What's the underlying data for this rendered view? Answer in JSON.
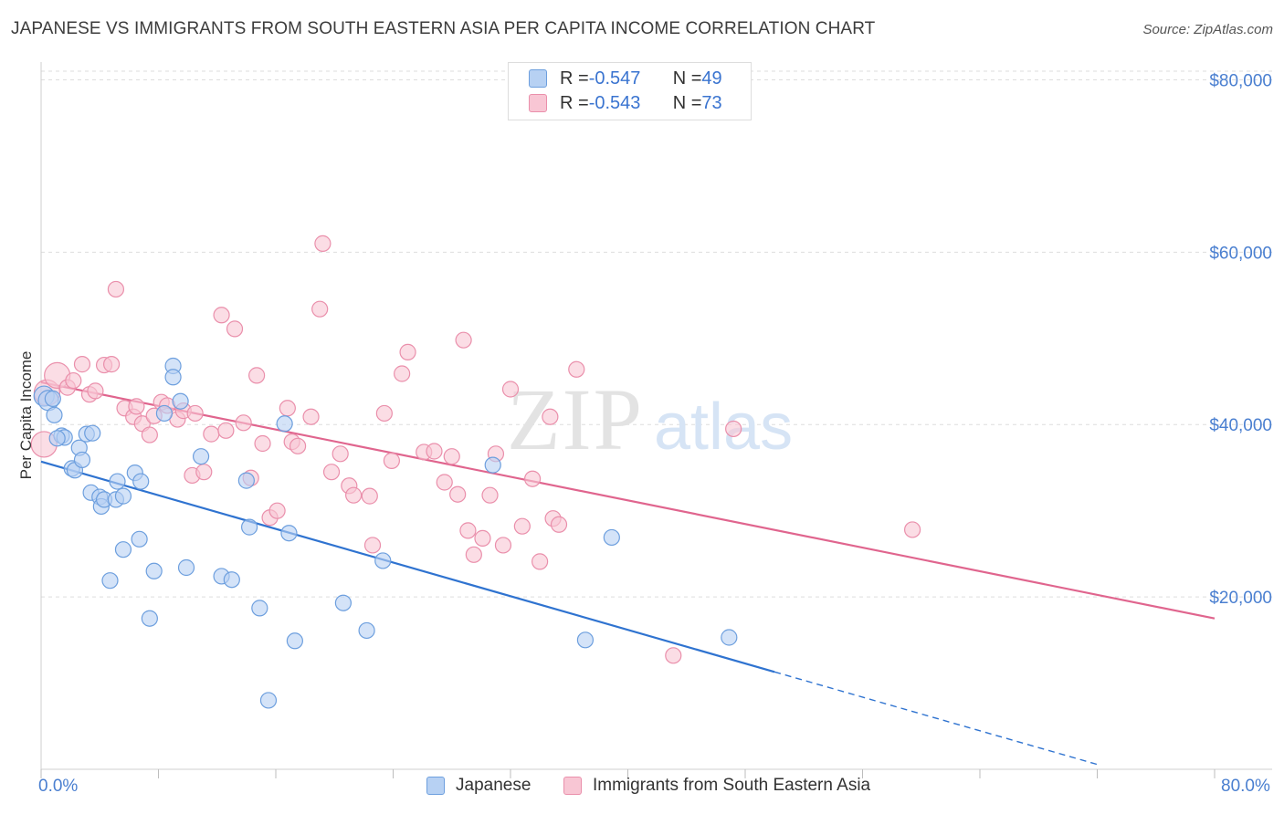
{
  "header": {
    "title": "JAPANESE VS IMMIGRANTS FROM SOUTH EASTERN ASIA PER CAPITA INCOME CORRELATION CHART",
    "source": "Source: ZipAtlas.com"
  },
  "watermark": {
    "zip": "ZIP",
    "atlas": "atlas"
  },
  "legend_top": {
    "rows": [
      {
        "r_label": "R = ",
        "r_value": "-0.547",
        "n_label": "N = ",
        "n_value": "49"
      },
      {
        "r_label": "R = ",
        "r_value": "-0.543",
        "n_label": "N = ",
        "n_value": "73"
      }
    ]
  },
  "legend_bottom": {
    "items": [
      {
        "label": "Japanese"
      },
      {
        "label": "Immigrants from South Eastern Asia"
      }
    ]
  },
  "colors": {
    "blue_fill": "#b7d1f3",
    "blue_stroke": "#6d9fde",
    "blue_line": "#2f73d0",
    "pink_fill": "#f8c6d4",
    "pink_stroke": "#ea8fab",
    "pink_line": "#e0658e",
    "axis_text": "#4a7fd0",
    "grid": "#dddddd"
  },
  "chart_data": {
    "type": "scatter",
    "title": "JAPANESE VS IMMIGRANTS FROM SOUTH EASTERN ASIA PER CAPITA INCOME CORRELATION CHART",
    "xlabel": "",
    "ylabel": "Per Capita Income",
    "xlim": [
      0,
      80
    ],
    "ylim": [
      0,
      81000
    ],
    "x_tick_labels": [
      "0.0%",
      "80.0%"
    ],
    "y_ticks": [
      20000,
      40000,
      60000,
      80000
    ],
    "y_tick_labels": [
      "$20,000",
      "$40,000",
      "$60,000",
      "$80,000"
    ],
    "grid": true,
    "legend_position": "top-center",
    "series": [
      {
        "name": "Japanese",
        "r": -0.547,
        "n": 49,
        "trend": {
          "x0": 0,
          "y0": 35700,
          "x1": 50,
          "y1": 11300,
          "dashed_to_x": 72
        },
        "points": [
          [
            0.2,
            43300
          ],
          [
            0.5,
            42800
          ],
          [
            0.9,
            41100
          ],
          [
            1.4,
            38700
          ],
          [
            1.6,
            38500
          ],
          [
            2.1,
            34900
          ],
          [
            2.3,
            34700
          ],
          [
            2.6,
            37300
          ],
          [
            2.8,
            35900
          ],
          [
            3.1,
            38900
          ],
          [
            3.5,
            39000
          ],
          [
            3.4,
            32100
          ],
          [
            4.0,
            31600
          ],
          [
            4.1,
            30500
          ],
          [
            4.3,
            31300
          ],
          [
            5.1,
            31300
          ],
          [
            5.2,
            33400
          ],
          [
            5.6,
            31700
          ],
          [
            5.6,
            25500
          ],
          [
            6.4,
            34400
          ],
          [
            6.7,
            26700
          ],
          [
            6.8,
            33400
          ],
          [
            7.4,
            17500
          ],
          [
            7.7,
            23000
          ],
          [
            8.4,
            41300
          ],
          [
            9.0,
            46800
          ],
          [
            9.0,
            45500
          ],
          [
            9.5,
            42700
          ],
          [
            9.9,
            23400
          ],
          [
            10.9,
            36300
          ],
          [
            12.3,
            22400
          ],
          [
            13.0,
            22000
          ],
          [
            14.0,
            33500
          ],
          [
            14.2,
            28100
          ],
          [
            14.9,
            18700
          ],
          [
            15.5,
            8000
          ],
          [
            16.6,
            40100
          ],
          [
            16.9,
            27400
          ],
          [
            17.3,
            14900
          ],
          [
            20.6,
            19300
          ],
          [
            22.2,
            16100
          ],
          [
            23.3,
            24200
          ],
          [
            30.8,
            35300
          ],
          [
            37.1,
            15000
          ],
          [
            38.9,
            26900
          ],
          [
            46.9,
            15300
          ],
          [
            4.7,
            21900
          ],
          [
            1.1,
            38400
          ],
          [
            0.8,
            43000
          ]
        ]
      },
      {
        "name": "Immigrants from South Eastern Asia",
        "r": -0.543,
        "n": 73,
        "trend": {
          "x0": 0,
          "y0": 44900,
          "x1": 80,
          "y1": 17500
        },
        "points": [
          [
            0.2,
            37700
          ],
          [
            0.4,
            43700
          ],
          [
            1.1,
            45700
          ],
          [
            1.8,
            44300
          ],
          [
            2.2,
            45100
          ],
          [
            2.8,
            47000
          ],
          [
            3.3,
            43500
          ],
          [
            3.7,
            43900
          ],
          [
            4.3,
            46900
          ],
          [
            4.8,
            47000
          ],
          [
            5.1,
            55700
          ],
          [
            5.7,
            41900
          ],
          [
            6.3,
            40900
          ],
          [
            6.5,
            42100
          ],
          [
            6.9,
            40100
          ],
          [
            7.4,
            38800
          ],
          [
            7.7,
            41000
          ],
          [
            8.2,
            42600
          ],
          [
            8.6,
            42200
          ],
          [
            9.3,
            40600
          ],
          [
            9.7,
            41600
          ],
          [
            10.3,
            34100
          ],
          [
            10.5,
            41300
          ],
          [
            11.1,
            34500
          ],
          [
            11.6,
            38900
          ],
          [
            12.3,
            52700
          ],
          [
            12.6,
            39300
          ],
          [
            13.2,
            51100
          ],
          [
            13.8,
            40200
          ],
          [
            14.3,
            33800
          ],
          [
            14.7,
            45700
          ],
          [
            15.1,
            37800
          ],
          [
            15.6,
            29200
          ],
          [
            16.1,
            30000
          ],
          [
            16.8,
            41900
          ],
          [
            17.1,
            38000
          ],
          [
            17.5,
            37500
          ],
          [
            18.4,
            40900
          ],
          [
            19.0,
            53400
          ],
          [
            19.2,
            61000
          ],
          [
            19.8,
            34500
          ],
          [
            20.4,
            36600
          ],
          [
            21.0,
            32900
          ],
          [
            21.3,
            31800
          ],
          [
            22.4,
            31700
          ],
          [
            22.6,
            26000
          ],
          [
            23.4,
            41300
          ],
          [
            23.9,
            35800
          ],
          [
            24.6,
            45900
          ],
          [
            25.0,
            48400
          ],
          [
            26.1,
            36800
          ],
          [
            26.8,
            36900
          ],
          [
            27.5,
            33300
          ],
          [
            28.0,
            36300
          ],
          [
            28.4,
            31900
          ],
          [
            28.8,
            49800
          ],
          [
            29.1,
            27700
          ],
          [
            29.5,
            24900
          ],
          [
            30.1,
            26800
          ],
          [
            30.6,
            31800
          ],
          [
            31.0,
            36600
          ],
          [
            31.5,
            26000
          ],
          [
            32.0,
            44100
          ],
          [
            32.8,
            28200
          ],
          [
            33.5,
            33700
          ],
          [
            34.0,
            24100
          ],
          [
            34.7,
            40900
          ],
          [
            34.9,
            29100
          ],
          [
            35.3,
            28400
          ],
          [
            36.5,
            46400
          ],
          [
            43.1,
            13200
          ],
          [
            47.2,
            39500
          ],
          [
            59.4,
            27800
          ]
        ]
      }
    ]
  }
}
